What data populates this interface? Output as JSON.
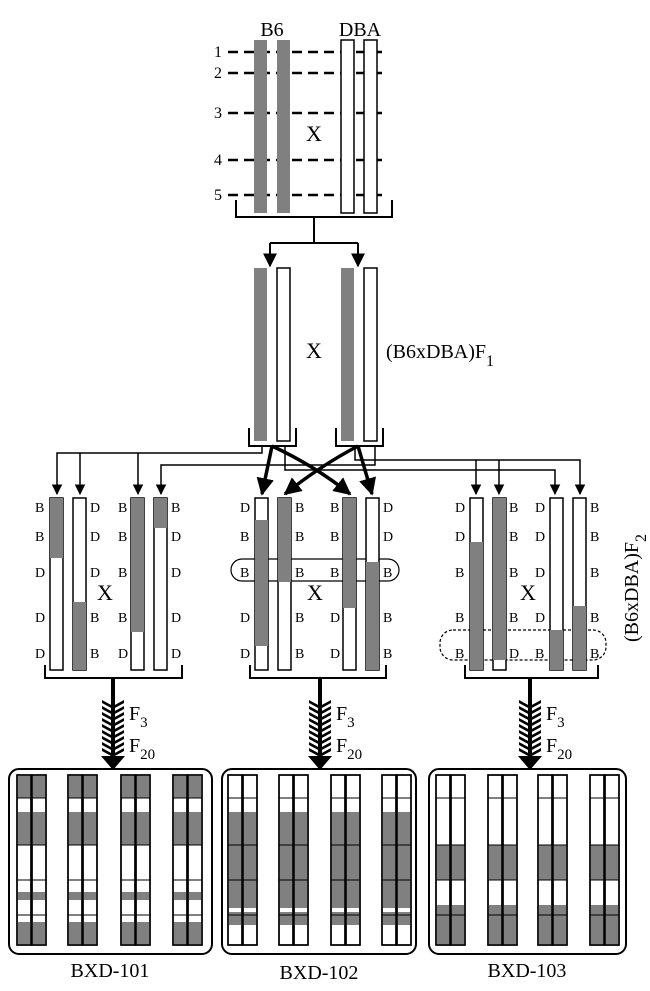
{
  "parents": {
    "b6_label": "B6",
    "dba_label": "DBA",
    "cross_symbol": "X",
    "marker_numbers": [
      "1",
      "2",
      "3",
      "4",
      "5"
    ]
  },
  "f1": {
    "label_main": "(B6xDBA)F",
    "label_sub": "1",
    "cross_symbol": "X"
  },
  "f2": {
    "label_main": "(B6xDBA)F",
    "label_sub": "2",
    "cross_symbol": "X",
    "groups": [
      {
        "left_column": [
          "B",
          "B",
          "D",
          "D",
          "D"
        ],
        "middle_left": [
          "D",
          "D",
          "D",
          "B",
          "B"
        ],
        "middle_right": [
          "B",
          "B",
          "B",
          "B",
          "D"
        ],
        "right_column": [
          "B",
          "D",
          "D",
          "D",
          "D"
        ]
      },
      {
        "left_column": [
          "D",
          "B",
          "B",
          "D",
          "D"
        ],
        "middle_left": [
          "B",
          "B",
          "B",
          "B",
          "B"
        ],
        "middle_right": [
          "B",
          "B",
          "B",
          "D",
          "D"
        ],
        "right_column": [
          "D",
          "D",
          "B",
          "B",
          "B"
        ]
      },
      {
        "left_column": [
          "D",
          "D",
          "B",
          "B",
          "B"
        ],
        "middle_left": [
          "B",
          "B",
          "B",
          "B",
          "D"
        ],
        "middle_right": [
          "D",
          "D",
          "D",
          "D",
          "B"
        ],
        "right_column": [
          "B",
          "B",
          "B",
          "B",
          "B"
        ]
      }
    ]
  },
  "generations": {
    "f3_main": "F",
    "f3_sub": "3",
    "f20_main": "F",
    "f20_sub": "20"
  },
  "strains": [
    {
      "name": "BXD-101"
    },
    {
      "name": "BXD-102"
    },
    {
      "name": "BXD-103"
    }
  ],
  "colors": {
    "b6_fill": "#808080",
    "dba_fill": "#ffffff",
    "line": "#000000"
  }
}
